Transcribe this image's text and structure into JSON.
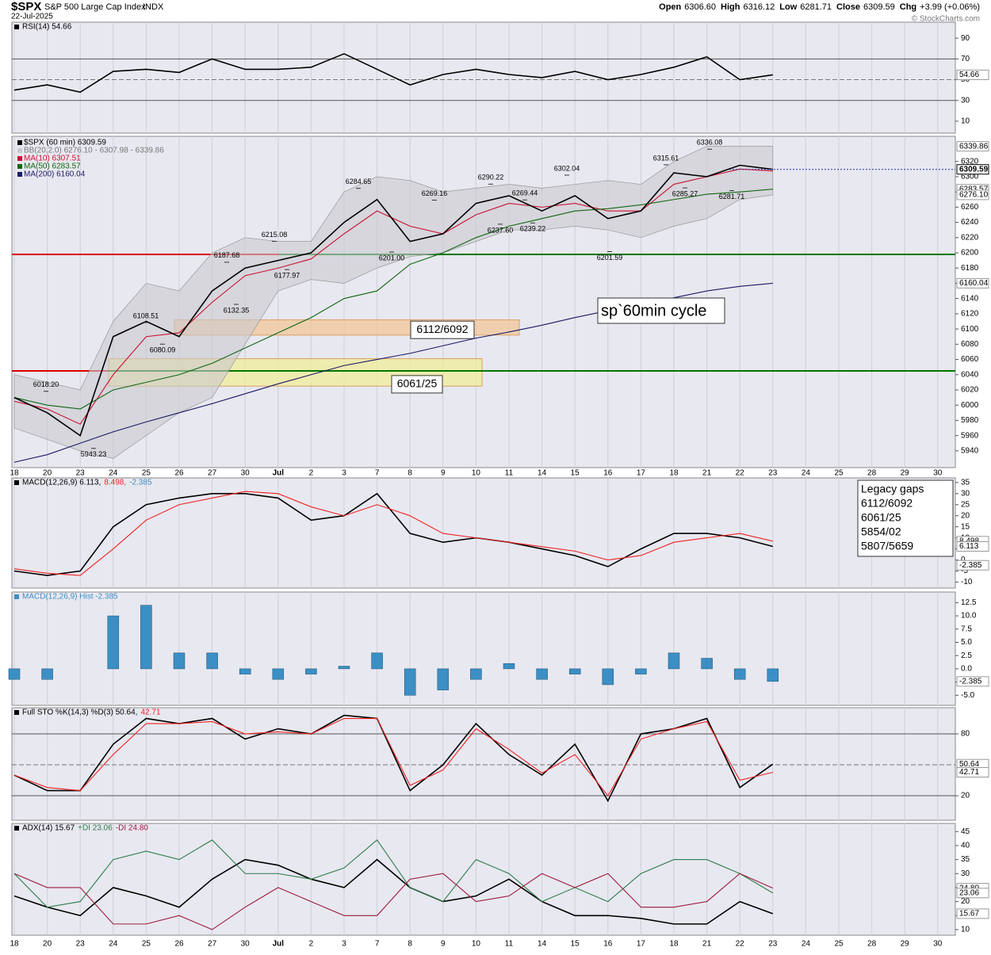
{
  "header": {
    "symbol": "$SPX",
    "name": "S&P 500 Large Cap Index",
    "exchange": "INDX",
    "date": "22-Jul-2025",
    "credit": "© StockCharts.com",
    "stats": [
      {
        "label": "Open",
        "value": "6306.60"
      },
      {
        "label": "High",
        "value": "6316.12"
      },
      {
        "label": "Low",
        "value": "6281.71"
      },
      {
        "label": "Close",
        "value": "6309.59"
      },
      {
        "label": "Chg",
        "value": "+3.99 (+0.06%)"
      }
    ]
  },
  "x_axis": {
    "categories": [
      "18",
      "20",
      "23",
      "24",
      "25",
      "26",
      "27",
      "30",
      "Jul",
      "2",
      "3",
      "7",
      "8",
      "9",
      "10",
      "11",
      "14",
      "15",
      "16",
      "17",
      "18",
      "21",
      "22",
      "23",
      "24",
      "25",
      "28",
      "29",
      "30"
    ]
  },
  "notes": {
    "cycle": "sp`60min cycle",
    "gaps_title": "Legacy gaps",
    "gaps": [
      "6112/6092",
      "6061/25",
      "5854/02",
      "5807/5659"
    ]
  },
  "chart_data": [
    {
      "type": "line",
      "ylim": [
        -1.5,
        105.4
      ],
      "yticks": [
        10,
        30,
        50,
        70,
        90
      ],
      "hlines": [
        {
          "value": 70,
          "color": "#555555"
        },
        {
          "value": 30,
          "color": "#555555"
        },
        {
          "value": 50,
          "color": "#777777",
          "dash": true
        }
      ],
      "series": [
        {
          "name": "RSI(14) 54.66",
          "color": "#000000",
          "values": [
            40,
            45,
            38,
            58,
            60,
            57,
            70,
            60,
            60,
            62,
            75,
            60,
            45,
            55,
            60,
            55,
            52,
            58,
            50,
            55,
            62,
            72,
            50,
            54.66,
            null,
            null,
            null,
            null,
            null
          ]
        }
      ],
      "tags": [
        54.66
      ]
    },
    {
      "type": "line",
      "ylim": [
        5918,
        6353
      ],
      "yticks": [
        5940,
        5960,
        5980,
        6000,
        6020,
        6040,
        6060,
        6080,
        6100,
        6120,
        6140,
        6160,
        6180,
        6200,
        6220,
        6240,
        6260,
        6280,
        6300,
        6320
      ],
      "zones": [
        {
          "label": "6112/6092",
          "from": 6112,
          "to": 6092,
          "color": "#f3c79a"
        },
        {
          "label": "6061/25",
          "from": 6061,
          "to": 6025,
          "color": "#f1ee9a"
        }
      ],
      "hlines": [
        {
          "value": 6198,
          "color": "#dd0000"
        },
        {
          "value": 6198,
          "color": "#007700"
        },
        {
          "value": 6045,
          "color": "#dd0000"
        },
        {
          "value": 6045,
          "color": "#007700"
        }
      ],
      "series": [
        {
          "name": "BB(20,2.0) 6276.10 - 6307.98 - 6339.86",
          "color": "#c9c9cf",
          "type": "band",
          "upper": [
            6040,
            6030,
            6020,
            6110,
            6160,
            6150,
            6200,
            6220,
            6215,
            6215,
            6280,
            6300,
            6295,
            6280,
            6285,
            6290,
            6285,
            6290,
            6295,
            6290,
            6320,
            6340,
            6340,
            6339.86,
            null,
            null,
            null,
            null,
            null
          ],
          "lower": [
            5970,
            5955,
            5940,
            5930,
            5960,
            5990,
            6010,
            6080,
            6150,
            6165,
            6160,
            6180,
            6195,
            6200,
            6215,
            6230,
            6230,
            6235,
            6230,
            6220,
            6235,
            6245,
            6270,
            6276.1,
            null,
            null,
            null,
            null,
            null
          ]
        },
        {
          "name": "MA(10) 6307.51",
          "color": "#cc1133",
          "values": [
            6005,
            5995,
            5975,
            6040,
            6090,
            6095,
            6135,
            6170,
            6180,
            6192,
            6225,
            6255,
            6235,
            6225,
            6250,
            6265,
            6260,
            6265,
            6255,
            6255,
            6290,
            6300,
            6310,
            6307.51,
            null,
            null,
            null,
            null,
            null
          ]
        },
        {
          "name": "MA(50) 6283.57",
          "color": "#116611",
          "values": [
            6010,
            6000,
            5995,
            6020,
            6030,
            6040,
            6055,
            6075,
            6095,
            6115,
            6140,
            6150,
            6185,
            6200,
            6220,
            6235,
            6245,
            6255,
            6258,
            6263,
            6270,
            6277,
            6280,
            6283.57,
            null,
            null,
            null,
            null,
            null
          ]
        },
        {
          "name": "MA(200) 6160.04",
          "color": "#1a1a66",
          "values": [
            5925,
            5935,
            5950,
            5965,
            5978,
            5990,
            6002,
            6015,
            6028,
            6040,
            6052,
            6060,
            6068,
            6078,
            6088,
            6096,
            6105,
            6115,
            6124,
            6133,
            6141,
            6150,
            6156,
            6160.04,
            null,
            null,
            null,
            null,
            null
          ]
        },
        {
          "name": "$SPX (60 min) 6309.59",
          "color": "#000000",
          "values": [
            6010,
            5990,
            5960,
            6090,
            6110,
            6090,
            6150,
            6180,
            6190,
            6200,
            6240,
            6270,
            6215,
            6225,
            6265,
            6275,
            6255,
            6275,
            6245,
            6255,
            6305,
            6300,
            6315,
            6309.59,
            null,
            null,
            null,
            null,
            null
          ]
        }
      ],
      "annotations": [
        {
          "value": 6018.2,
          "label": "6018.20"
        },
        {
          "value": 5943.23,
          "label": "5943.23"
        },
        {
          "value": 6108.51,
          "label": "6108.51"
        },
        {
          "value": 6080.09,
          "label": "6080.09"
        },
        {
          "value": 6187.68,
          "label": "6187.68"
        },
        {
          "value": 6132.35,
          "label": "6132.35"
        },
        {
          "value": 6215.08,
          "label": "6215.08"
        },
        {
          "value": 6177.97,
          "label": "6177.97"
        },
        {
          "value": 6284.65,
          "label": "6284.65"
        },
        {
          "value": 6201,
          "label": "6201.00"
        },
        {
          "value": 6269.16,
          "label": "6269.16"
        },
        {
          "value": 6237.6,
          "label": "6237.60"
        },
        {
          "value": 6290.22,
          "label": "6290.22"
        },
        {
          "value": 6269.44,
          "label": "6269.44"
        },
        {
          "value": 6239.22,
          "label": "6239.22"
        },
        {
          "value": 6302.04,
          "label": "6302.04"
        },
        {
          "value": 6201.59,
          "label": "6201.59"
        },
        {
          "value": 6315.61,
          "label": "6315.61"
        },
        {
          "value": 6285.27,
          "label": "6285.27"
        },
        {
          "value": 6336.08,
          "label": "6336.08"
        },
        {
          "value": 6281.71,
          "label": "6281.71"
        }
      ],
      "tags": [
        6339.86,
        6309.59,
        6283.57,
        {
          "value": 6276.1,
          "label": "6276.10"
        },
        6160.04
      ]
    },
    {
      "type": "line",
      "ylim": [
        -12.7,
        37.1
      ],
      "yticks": [
        -10,
        -5,
        0,
        5,
        10,
        15,
        20,
        25,
        30,
        35
      ],
      "series": [
        {
          "name": "MACD(12,26,9) 6.113,",
          "color": "#000000",
          "values": [
            -5,
            -7,
            -5,
            15,
            25,
            28,
            30,
            30,
            28,
            18,
            20,
            30,
            12,
            8,
            10,
            8,
            5,
            2,
            -3,
            5,
            12,
            12,
            10,
            6.113,
            null,
            null,
            null,
            null,
            null
          ]
        },
        {
          "name": "8.498,",
          "color": "#ee2222",
          "values": [
            -4,
            -6,
            -7,
            5,
            18,
            25,
            28,
            31,
            30,
            24,
            20,
            25,
            20,
            12,
            10,
            8,
            6,
            4,
            0,
            2,
            8,
            10,
            12,
            8.498,
            null,
            null,
            null,
            null,
            null
          ]
        },
        {
          "name": "-2.385",
          "color": "#3b8fc4"
        }
      ],
      "tags": [
        8.498,
        6.113,
        -2.385
      ]
    },
    {
      "type": "bar",
      "ylim": [
        -6.9,
        14.5
      ],
      "yticks": [
        {
          "value": -5,
          "label": "-5.0"
        },
        -2.5,
        {
          "value": 0,
          "label": "0.0"
        },
        2.5,
        {
          "value": 5,
          "label": "5.0"
        },
        7.5,
        {
          "value": 10,
          "label": "10.0"
        },
        12.5
      ],
      "series": [
        {
          "name": "MACD(12,26,9) Hist -2.385",
          "color": "#3b8fc4",
          "values": [
            -2,
            -2,
            0,
            10,
            12,
            3,
            3,
            -1,
            -2,
            -1,
            0.5,
            3,
            -5,
            -4,
            -2,
            1,
            -2,
            -1,
            -3,
            -1,
            3,
            2,
            -2,
            -2.385,
            null,
            null,
            null,
            null,
            null
          ]
        }
      ],
      "tags": [
        -2.385
      ]
    },
    {
      "type": "line",
      "ylim": [
        -3.8,
        105.4
      ],
      "yticks": [
        20,
        80
      ],
      "hlines": [
        {
          "value": 80,
          "color": "#555555"
        },
        {
          "value": 20,
          "color": "#555555"
        },
        {
          "value": 50,
          "color": "#777777",
          "dash": true
        }
      ],
      "series": [
        {
          "name": "Full STO %K(14,3) %D(3) 50.64,",
          "color": "#000000",
          "values": [
            40,
            25,
            25,
            70,
            95,
            90,
            95,
            75,
            85,
            80,
            98,
            95,
            25,
            50,
            90,
            60,
            40,
            70,
            15,
            80,
            85,
            95,
            28,
            50.64,
            null,
            null,
            null,
            null,
            null
          ]
        },
        {
          "name": "42.71",
          "color": "#ee2222",
          "values": [
            40,
            28,
            25,
            60,
            90,
            90,
            92,
            80,
            82,
            80,
            95,
            95,
            30,
            45,
            85,
            65,
            42,
            60,
            20,
            75,
            85,
            92,
            35,
            42.71,
            null,
            null,
            null,
            null,
            null
          ]
        }
      ],
      "tags": [
        50.64,
        42.71
      ]
    },
    {
      "type": "line",
      "ylim": [
        8,
        47.9
      ],
      "yticks": [
        10,
        15,
        20,
        25,
        30,
        35,
        40,
        45
      ],
      "series": [
        {
          "name": "ADX(14) 15.67",
          "color": "#000000",
          "values": [
            22,
            18,
            15,
            25,
            22,
            18,
            28,
            35,
            33,
            28,
            25,
            35,
            25,
            20,
            22,
            28,
            20,
            15,
            15,
            14,
            12,
            12,
            20,
            15.67,
            null,
            null,
            null,
            null,
            null
          ]
        },
        {
          "name": "+DI 23.06",
          "color": "#2e7d4a",
          "values": [
            30,
            18,
            20,
            35,
            38,
            35,
            42,
            30,
            30,
            28,
            32,
            42,
            25,
            20,
            35,
            30,
            20,
            25,
            20,
            30,
            35,
            35,
            30,
            23.06,
            null,
            null,
            null,
            null,
            null
          ]
        },
        {
          "name": "-DI 24.80",
          "color": "#9b1b3b",
          "values": [
            30,
            25,
            25,
            12,
            12,
            15,
            10,
            18,
            25,
            20,
            15,
            15,
            28,
            30,
            20,
            22,
            30,
            25,
            30,
            18,
            18,
            20,
            30,
            24.8,
            null,
            null,
            null,
            null,
            null
          ]
        }
      ],
      "tags": [
        {
          "value": 24.8,
          "label": "24.80"
        },
        23.06,
        15.67
      ]
    }
  ]
}
